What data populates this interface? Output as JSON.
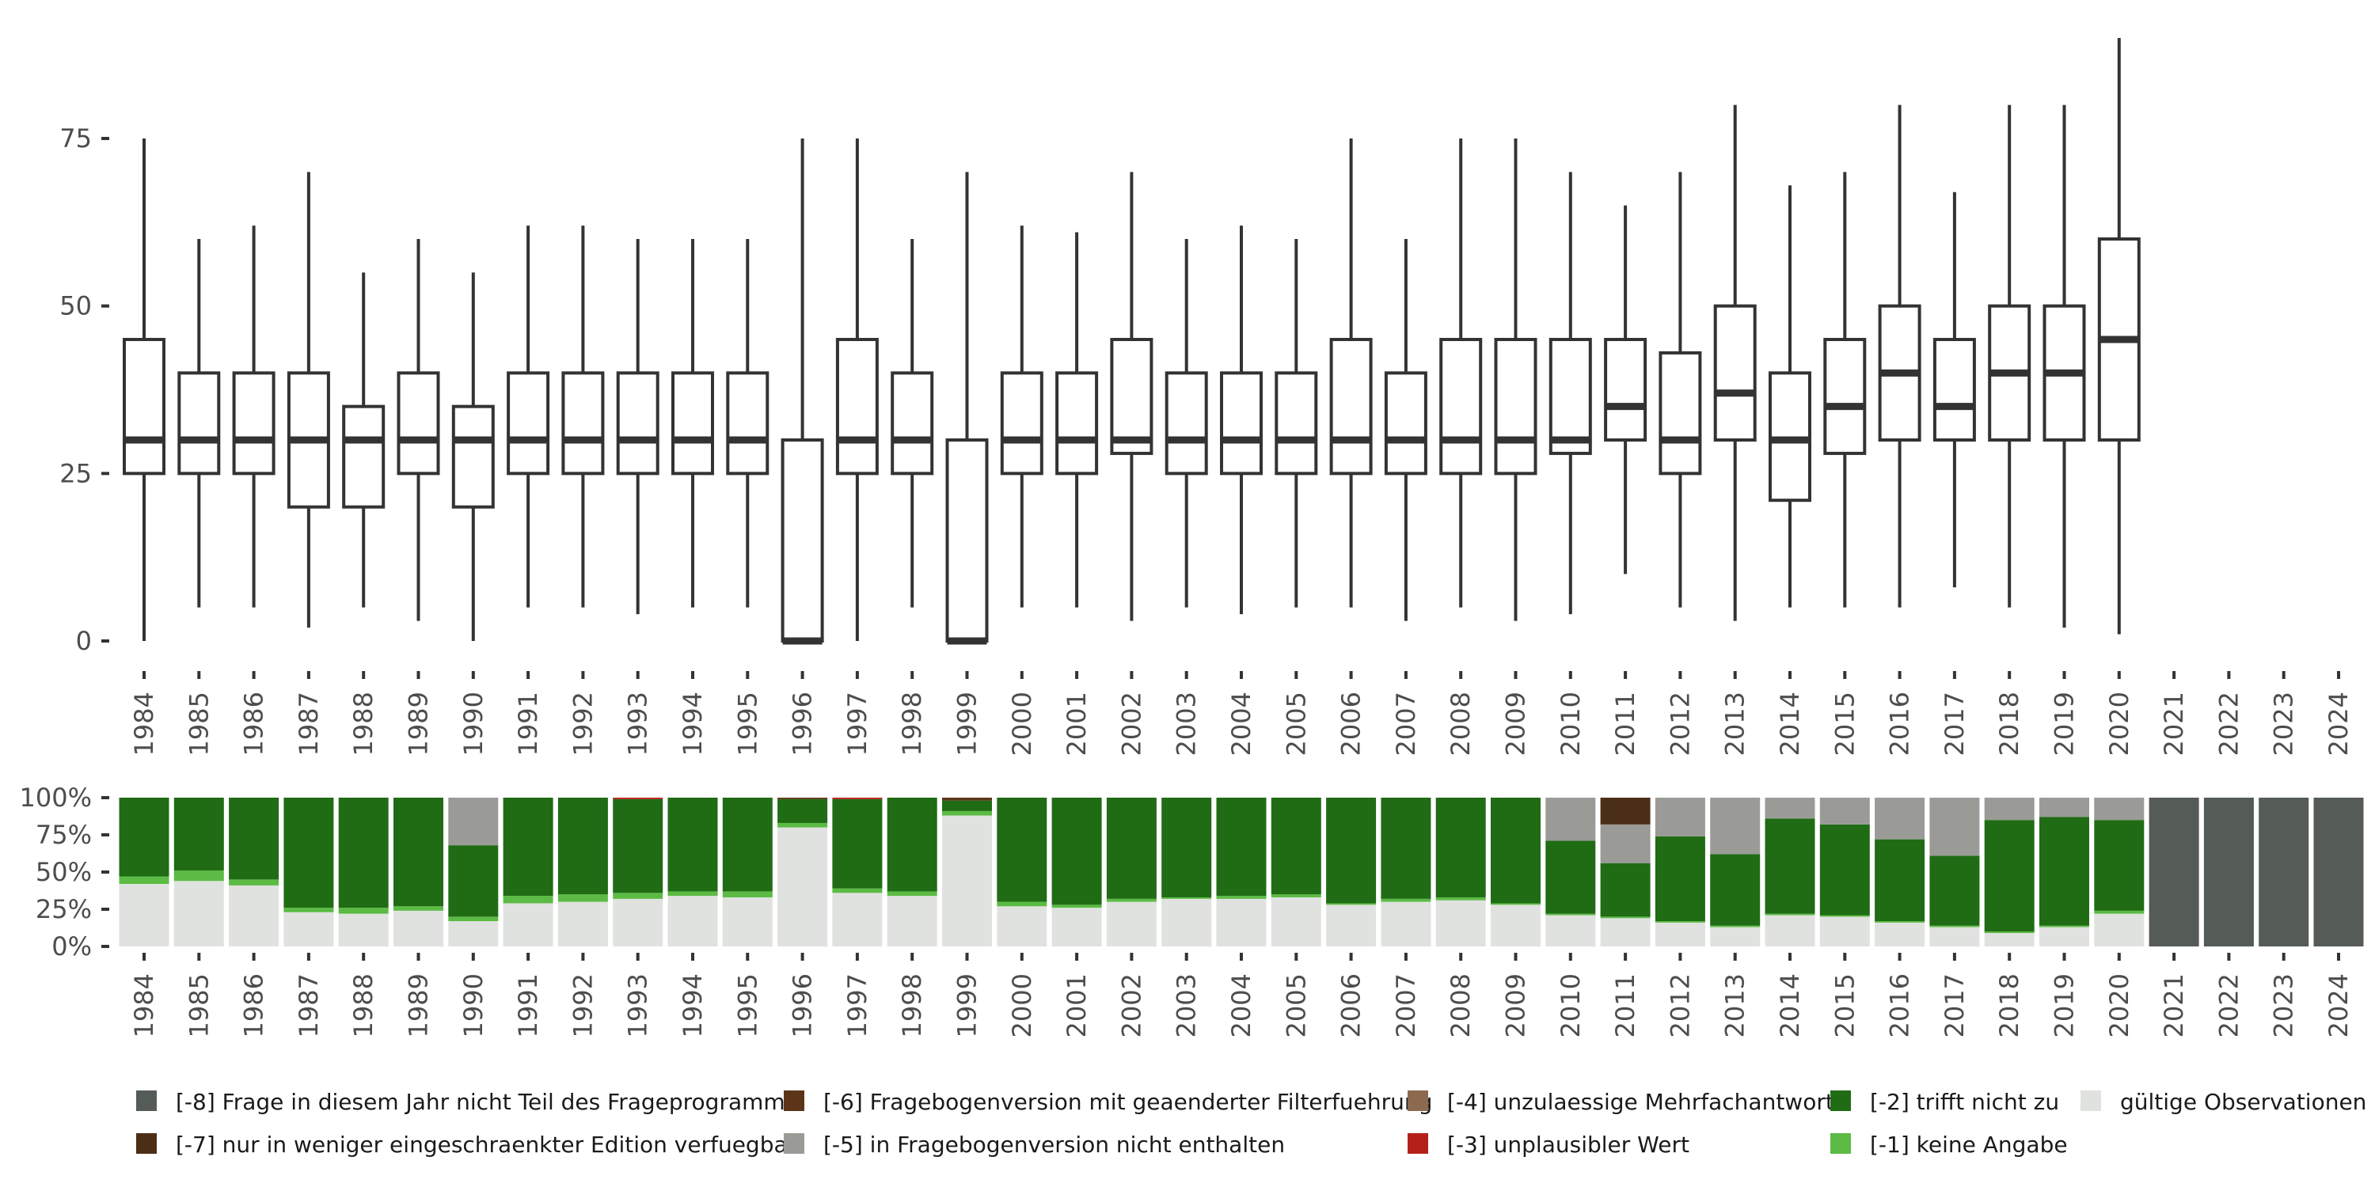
{
  "chart_data": [
    {
      "type": "boxplot",
      "title": "",
      "xlabel": "",
      "ylabel": "",
      "ylim": [
        0,
        90
      ],
      "yticks": [
        0,
        25,
        50,
        75
      ],
      "ytick_labels": [
        "0",
        "25",
        "50",
        "75"
      ],
      "categories": [
        "1984",
        "1985",
        "1986",
        "1987",
        "1988",
        "1989",
        "1990",
        "1991",
        "1992",
        "1993",
        "1994",
        "1995",
        "1996",
        "1997",
        "1998",
        "1999",
        "2000",
        "2001",
        "2002",
        "2003",
        "2004",
        "2005",
        "2006",
        "2007",
        "2008",
        "2009",
        "2010",
        "2011",
        "2012",
        "2013",
        "2014",
        "2015",
        "2016",
        "2017",
        "2018",
        "2019",
        "2020",
        "2021",
        "2022",
        "2023",
        "2024"
      ],
      "boxes": [
        {
          "year": "1984",
          "min": 0,
          "q1": 25,
          "median": 30,
          "q3": 45,
          "max": 75
        },
        {
          "year": "1985",
          "min": 5,
          "q1": 25,
          "median": 30,
          "q3": 40,
          "max": 60
        },
        {
          "year": "1986",
          "min": 5,
          "q1": 25,
          "median": 30,
          "q3": 40,
          "max": 62
        },
        {
          "year": "1987",
          "min": 2,
          "q1": 20,
          "median": 30,
          "q3": 40,
          "max": 70
        },
        {
          "year": "1988",
          "min": 5,
          "q1": 20,
          "median": 30,
          "q3": 35,
          "max": 55
        },
        {
          "year": "1989",
          "min": 3,
          "q1": 25,
          "median": 30,
          "q3": 40,
          "max": 60
        },
        {
          "year": "1990",
          "min": 0,
          "q1": 20,
          "median": 30,
          "q3": 35,
          "max": 55
        },
        {
          "year": "1991",
          "min": 5,
          "q1": 25,
          "median": 30,
          "q3": 40,
          "max": 62
        },
        {
          "year": "1992",
          "min": 5,
          "q1": 25,
          "median": 30,
          "q3": 40,
          "max": 62
        },
        {
          "year": "1993",
          "min": 4,
          "q1": 25,
          "median": 30,
          "q3": 40,
          "max": 60
        },
        {
          "year": "1994",
          "min": 5,
          "q1": 25,
          "median": 30,
          "q3": 40,
          "max": 60
        },
        {
          "year": "1995",
          "min": 5,
          "q1": 25,
          "median": 30,
          "q3": 40,
          "max": 60
        },
        {
          "year": "1996",
          "min": 0,
          "q1": 0,
          "median": 0,
          "q3": 30,
          "max": 75
        },
        {
          "year": "1997",
          "min": 0,
          "q1": 25,
          "median": 30,
          "q3": 45,
          "max": 75
        },
        {
          "year": "1998",
          "min": 5,
          "q1": 25,
          "median": 30,
          "q3": 40,
          "max": 60
        },
        {
          "year": "1999",
          "min": 0,
          "q1": 0,
          "median": 0,
          "q3": 30,
          "max": 70
        },
        {
          "year": "2000",
          "min": 5,
          "q1": 25,
          "median": 30,
          "q3": 40,
          "max": 62
        },
        {
          "year": "2001",
          "min": 5,
          "q1": 25,
          "median": 30,
          "q3": 40,
          "max": 61
        },
        {
          "year": "2002",
          "min": 3,
          "q1": 28,
          "median": 30,
          "q3": 45,
          "max": 70
        },
        {
          "year": "2003",
          "min": 5,
          "q1": 25,
          "median": 30,
          "q3": 40,
          "max": 60
        },
        {
          "year": "2004",
          "min": 4,
          "q1": 25,
          "median": 30,
          "q3": 40,
          "max": 62
        },
        {
          "year": "2005",
          "min": 5,
          "q1": 25,
          "median": 30,
          "q3": 40,
          "max": 60
        },
        {
          "year": "2006",
          "min": 5,
          "q1": 25,
          "median": 30,
          "q3": 45,
          "max": 75
        },
        {
          "year": "2007",
          "min": 3,
          "q1": 25,
          "median": 30,
          "q3": 40,
          "max": 60
        },
        {
          "year": "2008",
          "min": 5,
          "q1": 25,
          "median": 30,
          "q3": 45,
          "max": 75
        },
        {
          "year": "2009",
          "min": 3,
          "q1": 25,
          "median": 30,
          "q3": 45,
          "max": 75
        },
        {
          "year": "2010",
          "min": 4,
          "q1": 28,
          "median": 30,
          "q3": 45,
          "max": 70
        },
        {
          "year": "2011",
          "min": 10,
          "q1": 30,
          "median": 35,
          "q3": 45,
          "max": 65
        },
        {
          "year": "2012",
          "min": 5,
          "q1": 25,
          "median": 30,
          "q3": 43,
          "max": 70
        },
        {
          "year": "2013",
          "min": 3,
          "q1": 30,
          "median": 37,
          "q3": 50,
          "max": 80
        },
        {
          "year": "2014",
          "min": 5,
          "q1": 21,
          "median": 30,
          "q3": 40,
          "max": 68
        },
        {
          "year": "2015",
          "min": 5,
          "q1": 28,
          "median": 35,
          "q3": 45,
          "max": 70
        },
        {
          "year": "2016",
          "min": 5,
          "q1": 30,
          "median": 40,
          "q3": 50,
          "max": 80
        },
        {
          "year": "2017",
          "min": 8,
          "q1": 30,
          "median": 35,
          "q3": 45,
          "max": 67
        },
        {
          "year": "2018",
          "min": 5,
          "q1": 30,
          "median": 40,
          "q3": 50,
          "max": 80
        },
        {
          "year": "2019",
          "min": 2,
          "q1": 30,
          "median": 40,
          "q3": 50,
          "max": 80
        },
        {
          "year": "2020",
          "min": 1,
          "q1": 30,
          "median": 45,
          "q3": 60,
          "max": 90
        }
      ]
    },
    {
      "type": "bar",
      "stacked": true,
      "title": "",
      "xlabel": "",
      "ylabel": "",
      "ylim": [
        0,
        100
      ],
      "yticks": [
        0,
        25,
        50,
        75,
        100
      ],
      "ytick_labels": [
        "0%",
        "25%",
        "50%",
        "75%",
        "100%"
      ],
      "categories": [
        "1984",
        "1985",
        "1986",
        "1987",
        "1988",
        "1989",
        "1990",
        "1991",
        "1992",
        "1993",
        "1994",
        "1995",
        "1996",
        "1997",
        "1998",
        "1999",
        "2000",
        "2001",
        "2002",
        "2003",
        "2004",
        "2005",
        "2006",
        "2007",
        "2008",
        "2009",
        "2010",
        "2011",
        "2012",
        "2013",
        "2014",
        "2015",
        "2016",
        "2017",
        "2018",
        "2019",
        "2020",
        "2021",
        "2022",
        "2023",
        "2024"
      ],
      "series": [
        {
          "name": "gültige Observationen",
          "color": "#e0e2df",
          "values": [
            42,
            44,
            41,
            23,
            22,
            24,
            17,
            29,
            30,
            32,
            34,
            33,
            80,
            36,
            34,
            88,
            27,
            26,
            30,
            32,
            32,
            33,
            28,
            30,
            31,
            28,
            21,
            19,
            16,
            13,
            21,
            20,
            16,
            13,
            9,
            13,
            22,
            0,
            0,
            0,
            0
          ]
        },
        {
          "name": "[-1] keine Angabe",
          "color": "#5bbb44",
          "values": [
            5,
            7,
            4,
            3,
            4,
            3,
            3,
            5,
            5,
            4,
            3,
            4,
            3,
            3,
            3,
            3,
            3,
            2,
            2,
            1,
            2,
            2,
            1,
            2,
            2,
            1,
            1,
            1,
            1,
            1,
            1,
            1,
            1,
            1,
            1,
            1,
            2,
            0,
            0,
            0,
            0
          ]
        },
        {
          "name": "[-2] trifft nicht zu",
          "color": "#1f6c14",
          "values": [
            53,
            49,
            55,
            74,
            74,
            73,
            48,
            66,
            65,
            63,
            63,
            63,
            16,
            60,
            63,
            7,
            70,
            72,
            68,
            67,
            66,
            65,
            71,
            68,
            67,
            71,
            49,
            36,
            57,
            48,
            64,
            61,
            55,
            47,
            75,
            73,
            61,
            0,
            0,
            0,
            0
          ]
        },
        {
          "name": "[-3] unplausibler Wert",
          "color": "#b5211a",
          "values": [
            0,
            0,
            0,
            0,
            0,
            0,
            0,
            0,
            0,
            1,
            0,
            0,
            0,
            1,
            0,
            0,
            0,
            0,
            0,
            0,
            0,
            0,
            0,
            0,
            0,
            0,
            0,
            0,
            0,
            0,
            0,
            0,
            0,
            0,
            0,
            0,
            0,
            0,
            0,
            0,
            0
          ]
        },
        {
          "name": "[-4] unzulaessige Mehrfachantwort",
          "color": "#8b6a4f",
          "values": [
            0,
            0,
            0,
            0,
            0,
            0,
            0,
            0,
            0,
            0,
            0,
            0,
            0,
            0,
            0,
            0,
            0,
            0,
            0,
            0,
            0,
            0,
            0,
            0,
            0,
            0,
            0,
            0,
            0,
            0,
            0,
            0,
            0,
            0,
            0,
            0,
            0,
            0,
            0,
            0,
            0
          ]
        },
        {
          "name": "[-5] in Fragebogenversion nicht enthalten",
          "color": "#9a9b97",
          "values": [
            0,
            0,
            0,
            0,
            0,
            0,
            32,
            0,
            0,
            0,
            0,
            0,
            0,
            0,
            0,
            0,
            0,
            0,
            0,
            0,
            0,
            0,
            0,
            0,
            0,
            0,
            29,
            26,
            26,
            38,
            14,
            18,
            28,
            39,
            15,
            13,
            15,
            0,
            0,
            0,
            0
          ]
        },
        {
          "name": "[-6] Fragebogenversion mit geaenderter Filterfuehrung",
          "color": "#5c3518",
          "values": [
            0,
            0,
            0,
            0,
            0,
            0,
            0,
            0,
            0,
            0,
            0,
            0,
            1,
            0,
            0,
            2,
            0,
            0,
            0,
            0,
            0,
            0,
            0,
            0,
            0,
            0,
            0,
            0,
            0,
            0,
            0,
            0,
            0,
            0,
            0,
            0,
            0,
            0,
            0,
            0,
            0
          ]
        },
        {
          "name": "[-7] nur in weniger eingeschraenkter Edition verfuegbar",
          "color": "#4a2e16",
          "values": [
            0,
            0,
            0,
            0,
            0,
            0,
            0,
            0,
            0,
            0,
            0,
            0,
            0,
            0,
            0,
            0,
            0,
            0,
            0,
            0,
            0,
            0,
            0,
            0,
            0,
            0,
            0,
            18,
            0,
            0,
            0,
            0,
            0,
            0,
            0,
            0,
            0,
            0,
            0,
            0,
            0
          ]
        },
        {
          "name": "[-8] Frage in diesem Jahr nicht Teil des Frageprogramms",
          "color": "#555b56",
          "values": [
            0,
            0,
            0,
            0,
            0,
            0,
            0,
            0,
            0,
            0,
            0,
            0,
            0,
            0,
            0,
            0,
            0,
            0,
            0,
            0,
            0,
            0,
            0,
            0,
            0,
            0,
            0,
            0,
            0,
            0,
            0,
            0,
            0,
            0,
            0,
            0,
            0,
            100,
            100,
            100,
            100
          ]
        }
      ],
      "legend": {
        "placement": "bottom",
        "entries": [
          {
            "label": "[-8] Frage in diesem Jahr nicht Teil des Frageprogramms",
            "color": "#555b56"
          },
          {
            "label": "[-6] Fragebogenversion mit geaenderter Filterfuehrung",
            "color": "#5c3518"
          },
          {
            "label": "[-4] unzulaessige Mehrfachantwort",
            "color": "#8b6a4f"
          },
          {
            "label": "[-2] trifft nicht zu",
            "color": "#1f6c14"
          },
          {
            "label": "gültige Observationen",
            "color": "#e0e2df"
          },
          {
            "label": "[-7] nur in weniger eingeschraenkter Edition verfuegbar",
            "color": "#4a2e16"
          },
          {
            "label": "[-5] in Fragebogenversion nicht enthalten",
            "color": "#9a9b97"
          },
          {
            "label": "[-3] unplausibler Wert",
            "color": "#b5211a"
          },
          {
            "label": "[-1] keine Angabe",
            "color": "#5bbb44"
          }
        ]
      }
    }
  ]
}
